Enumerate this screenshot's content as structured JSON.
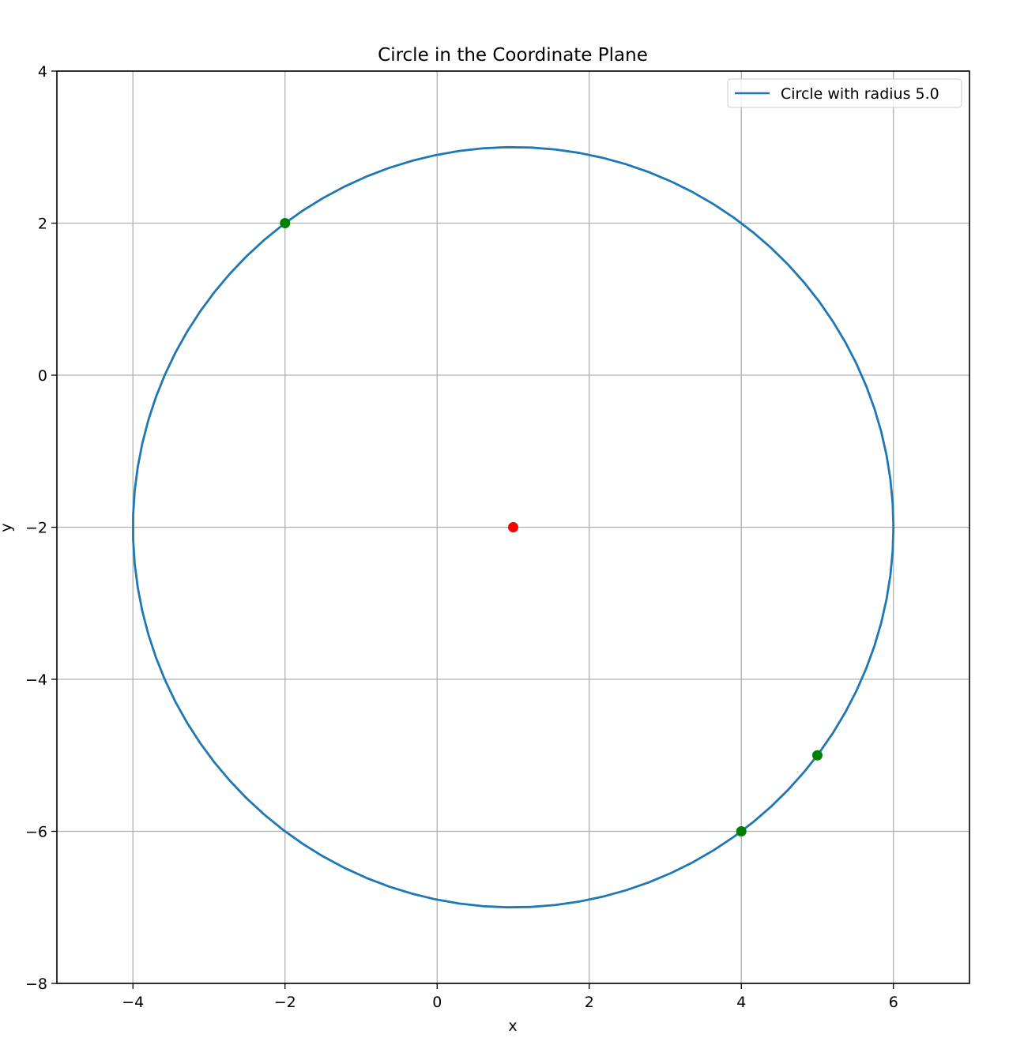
{
  "chart_data": {
    "type": "line",
    "title": "Circle in the Coordinate Plane",
    "xlabel": "x",
    "ylabel": "y",
    "xlim": [
      -5,
      7
    ],
    "ylim": [
      -8,
      4
    ],
    "x_ticks": [
      -4,
      -2,
      0,
      2,
      4,
      6
    ],
    "y_ticks": [
      -8,
      -6,
      -4,
      -2,
      0,
      2,
      4
    ],
    "x_tick_labels": [
      "−4",
      "−2",
      "0",
      "2",
      "4",
      "6"
    ],
    "y_tick_labels": [
      "−8",
      "−6",
      "−4",
      "−2",
      "0",
      "2",
      "4"
    ],
    "grid": true,
    "legend_position": "top-right",
    "series": [
      {
        "name": "Circle with radius 5.0",
        "kind": "circle",
        "center": [
          1,
          -2
        ],
        "radius": 5.0,
        "color": "#1f77b4"
      }
    ],
    "center_point": {
      "x": 1,
      "y": -2,
      "color": "#ff0000"
    },
    "points": [
      {
        "x": -2,
        "y": 2,
        "color": "#008000"
      },
      {
        "x": 4,
        "y": -6,
        "color": "#008000"
      },
      {
        "x": 5,
        "y": -5,
        "color": "#008000"
      }
    ]
  }
}
